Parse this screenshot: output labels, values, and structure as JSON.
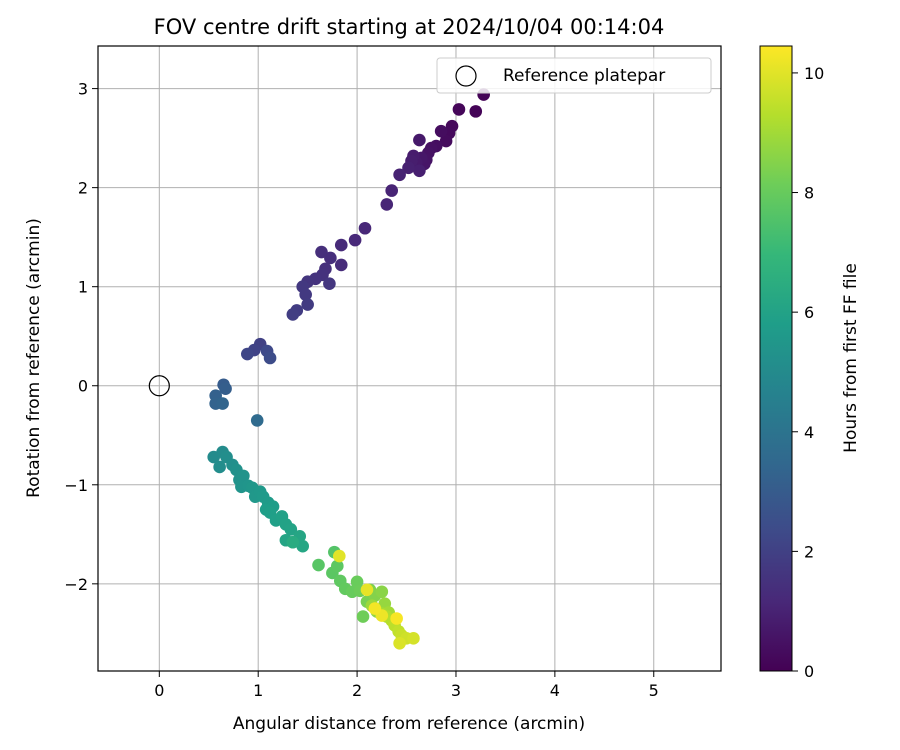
{
  "chart_data": {
    "type": "scatter",
    "title": "FOV centre drift starting at 2024/10/04 00:14:04",
    "xlabel": "Angular distance from reference (arcmin)",
    "ylabel": "Rotation from reference (arcmin)",
    "xlim": [
      -0.62,
      5.68
    ],
    "ylim": [
      -2.88,
      3.43
    ],
    "xticks": [
      0,
      1,
      2,
      3,
      4,
      5
    ],
    "yticks": [
      -2,
      -1,
      0,
      1,
      2,
      3
    ],
    "grid": true,
    "legend": {
      "placement": "top-right",
      "entries": [
        {
          "label": "Reference platepar",
          "marker": "open-circle",
          "x": 0,
          "y": 0
        }
      ]
    },
    "colorbar": {
      "label": "Hours from first FF file",
      "range": [
        0,
        10.45
      ],
      "ticks": [
        0,
        2,
        4,
        6,
        8,
        10
      ],
      "colormap": "viridis"
    },
    "points": [
      {
        "x": 3.28,
        "y": 2.94,
        "c": 0.05
      },
      {
        "x": 3.2,
        "y": 2.77,
        "c": 0.1
      },
      {
        "x": 3.03,
        "y": 2.79,
        "c": 0.15
      },
      {
        "x": 2.96,
        "y": 2.62,
        "c": 0.2
      },
      {
        "x": 2.93,
        "y": 2.55,
        "c": 0.25
      },
      {
        "x": 2.9,
        "y": 2.47,
        "c": 0.3
      },
      {
        "x": 2.85,
        "y": 2.57,
        "c": 0.35
      },
      {
        "x": 2.8,
        "y": 2.42,
        "c": 0.4
      },
      {
        "x": 2.75,
        "y": 2.4,
        "c": 0.45
      },
      {
        "x": 2.72,
        "y": 2.35,
        "c": 0.5
      },
      {
        "x": 2.7,
        "y": 2.28,
        "c": 0.55
      },
      {
        "x": 2.68,
        "y": 2.24,
        "c": 0.6
      },
      {
        "x": 2.65,
        "y": 2.3,
        "c": 0.65
      },
      {
        "x": 2.63,
        "y": 2.48,
        "c": 0.7
      },
      {
        "x": 2.6,
        "y": 2.25,
        "c": 0.75
      },
      {
        "x": 2.57,
        "y": 2.32,
        "c": 0.8
      },
      {
        "x": 2.55,
        "y": 2.27,
        "c": 0.85
      },
      {
        "x": 2.63,
        "y": 2.17,
        "c": 0.9
      },
      {
        "x": 2.52,
        "y": 2.2,
        "c": 0.95
      },
      {
        "x": 2.43,
        "y": 2.13,
        "c": 1.0
      },
      {
        "x": 2.35,
        "y": 1.97,
        "c": 1.05
      },
      {
        "x": 2.3,
        "y": 1.83,
        "c": 1.1
      },
      {
        "x": 2.08,
        "y": 1.59,
        "c": 1.15
      },
      {
        "x": 1.98,
        "y": 1.47,
        "c": 1.2
      },
      {
        "x": 1.84,
        "y": 1.42,
        "c": 1.25
      },
      {
        "x": 1.84,
        "y": 1.22,
        "c": 1.3
      },
      {
        "x": 1.73,
        "y": 1.29,
        "c": 1.35
      },
      {
        "x": 1.64,
        "y": 1.35,
        "c": 1.4
      },
      {
        "x": 1.68,
        "y": 1.18,
        "c": 1.45
      },
      {
        "x": 1.65,
        "y": 1.12,
        "c": 1.5
      },
      {
        "x": 1.58,
        "y": 1.08,
        "c": 1.55
      },
      {
        "x": 1.5,
        "y": 1.05,
        "c": 1.6
      },
      {
        "x": 1.72,
        "y": 1.03,
        "c": 1.65
      },
      {
        "x": 1.45,
        "y": 1.0,
        "c": 1.7
      },
      {
        "x": 1.48,
        "y": 0.92,
        "c": 1.75
      },
      {
        "x": 1.5,
        "y": 0.82,
        "c": 1.8
      },
      {
        "x": 1.39,
        "y": 0.76,
        "c": 1.85
      },
      {
        "x": 1.35,
        "y": 0.72,
        "c": 1.9
      },
      {
        "x": 1.02,
        "y": 0.42,
        "c": 2.0
      },
      {
        "x": 0.96,
        "y": 0.36,
        "c": 2.1
      },
      {
        "x": 0.89,
        "y": 0.32,
        "c": 2.2
      },
      {
        "x": 1.09,
        "y": 0.35,
        "c": 2.3
      },
      {
        "x": 1.12,
        "y": 0.28,
        "c": 2.4
      },
      {
        "x": 0.65,
        "y": 0.01,
        "c": 3.0
      },
      {
        "x": 0.67,
        "y": -0.03,
        "c": 3.1
      },
      {
        "x": 0.57,
        "y": -0.1,
        "c": 3.2
      },
      {
        "x": 0.57,
        "y": -0.18,
        "c": 3.3
      },
      {
        "x": 0.64,
        "y": -0.18,
        "c": 3.35
      },
      {
        "x": 0.99,
        "y": -0.35,
        "c": 3.6
      },
      {
        "x": 0.55,
        "y": -0.72,
        "c": 5.0
      },
      {
        "x": 0.64,
        "y": -0.67,
        "c": 5.05
      },
      {
        "x": 0.61,
        "y": -0.82,
        "c": 5.1
      },
      {
        "x": 0.68,
        "y": -0.72,
        "c": 5.15
      },
      {
        "x": 0.74,
        "y": -0.8,
        "c": 5.2
      },
      {
        "x": 0.78,
        "y": -0.85,
        "c": 5.25
      },
      {
        "x": 0.81,
        "y": -0.95,
        "c": 5.3
      },
      {
        "x": 0.85,
        "y": -0.91,
        "c": 5.35
      },
      {
        "x": 0.83,
        "y": -1.02,
        "c": 5.4
      },
      {
        "x": 0.9,
        "y": -1.01,
        "c": 5.45
      },
      {
        "x": 0.94,
        "y": -1.03,
        "c": 5.5
      },
      {
        "x": 0.97,
        "y": -1.12,
        "c": 5.55
      },
      {
        "x": 1.02,
        "y": -1.07,
        "c": 5.6
      },
      {
        "x": 1.05,
        "y": -1.12,
        "c": 5.65
      },
      {
        "x": 1.1,
        "y": -1.18,
        "c": 5.7
      },
      {
        "x": 1.15,
        "y": -1.22,
        "c": 5.75
      },
      {
        "x": 1.08,
        "y": -1.25,
        "c": 5.8
      },
      {
        "x": 1.12,
        "y": -1.28,
        "c": 5.85
      },
      {
        "x": 1.18,
        "y": -1.36,
        "c": 5.9
      },
      {
        "x": 1.24,
        "y": -1.32,
        "c": 5.95
      },
      {
        "x": 1.28,
        "y": -1.4,
        "c": 6.0
      },
      {
        "x": 1.33,
        "y": -1.45,
        "c": 6.05
      },
      {
        "x": 1.28,
        "y": -1.56,
        "c": 6.1
      },
      {
        "x": 1.42,
        "y": -1.52,
        "c": 6.15
      },
      {
        "x": 1.45,
        "y": -1.62,
        "c": 6.2
      },
      {
        "x": 1.35,
        "y": -1.58,
        "c": 6.4
      },
      {
        "x": 1.77,
        "y": -1.68,
        "c": 7.6
      },
      {
        "x": 1.61,
        "y": -1.81,
        "c": 7.7
      },
      {
        "x": 1.75,
        "y": -1.89,
        "c": 7.75
      },
      {
        "x": 1.8,
        "y": -1.82,
        "c": 7.8
      },
      {
        "x": 1.83,
        "y": -1.97,
        "c": 7.85
      },
      {
        "x": 1.88,
        "y": -2.05,
        "c": 7.9
      },
      {
        "x": 1.95,
        "y": -2.08,
        "c": 8.0
      },
      {
        "x": 2.0,
        "y": -1.98,
        "c": 8.05
      },
      {
        "x": 2.03,
        "y": -2.07,
        "c": 8.1
      },
      {
        "x": 2.06,
        "y": -2.33,
        "c": 8.15
      },
      {
        "x": 2.1,
        "y": -2.18,
        "c": 8.3
      },
      {
        "x": 2.13,
        "y": -2.06,
        "c": 8.4
      },
      {
        "x": 2.18,
        "y": -2.12,
        "c": 8.5
      },
      {
        "x": 2.25,
        "y": -2.08,
        "c": 8.6
      },
      {
        "x": 2.2,
        "y": -2.28,
        "c": 8.7
      },
      {
        "x": 2.28,
        "y": -2.2,
        "c": 8.8
      },
      {
        "x": 2.15,
        "y": -2.22,
        "c": 8.9
      },
      {
        "x": 2.32,
        "y": -2.29,
        "c": 9.0
      },
      {
        "x": 2.25,
        "y": -2.3,
        "c": 9.1
      },
      {
        "x": 2.3,
        "y": -2.33,
        "c": 9.2
      },
      {
        "x": 2.35,
        "y": -2.37,
        "c": 9.3
      },
      {
        "x": 2.38,
        "y": -2.42,
        "c": 9.4
      },
      {
        "x": 2.42,
        "y": -2.48,
        "c": 9.5
      },
      {
        "x": 2.45,
        "y": -2.52,
        "c": 9.6
      },
      {
        "x": 2.5,
        "y": -2.55,
        "c": 9.7
      },
      {
        "x": 2.57,
        "y": -2.55,
        "c": 9.8
      },
      {
        "x": 2.43,
        "y": -2.6,
        "c": 9.9
      },
      {
        "x": 1.82,
        "y": -1.72,
        "c": 10.0
      },
      {
        "x": 2.1,
        "y": -2.06,
        "c": 10.1
      },
      {
        "x": 2.25,
        "y": -2.32,
        "c": 10.2
      },
      {
        "x": 2.18,
        "y": -2.25,
        "c": 10.3
      },
      {
        "x": 2.4,
        "y": -2.35,
        "c": 10.35
      }
    ]
  }
}
